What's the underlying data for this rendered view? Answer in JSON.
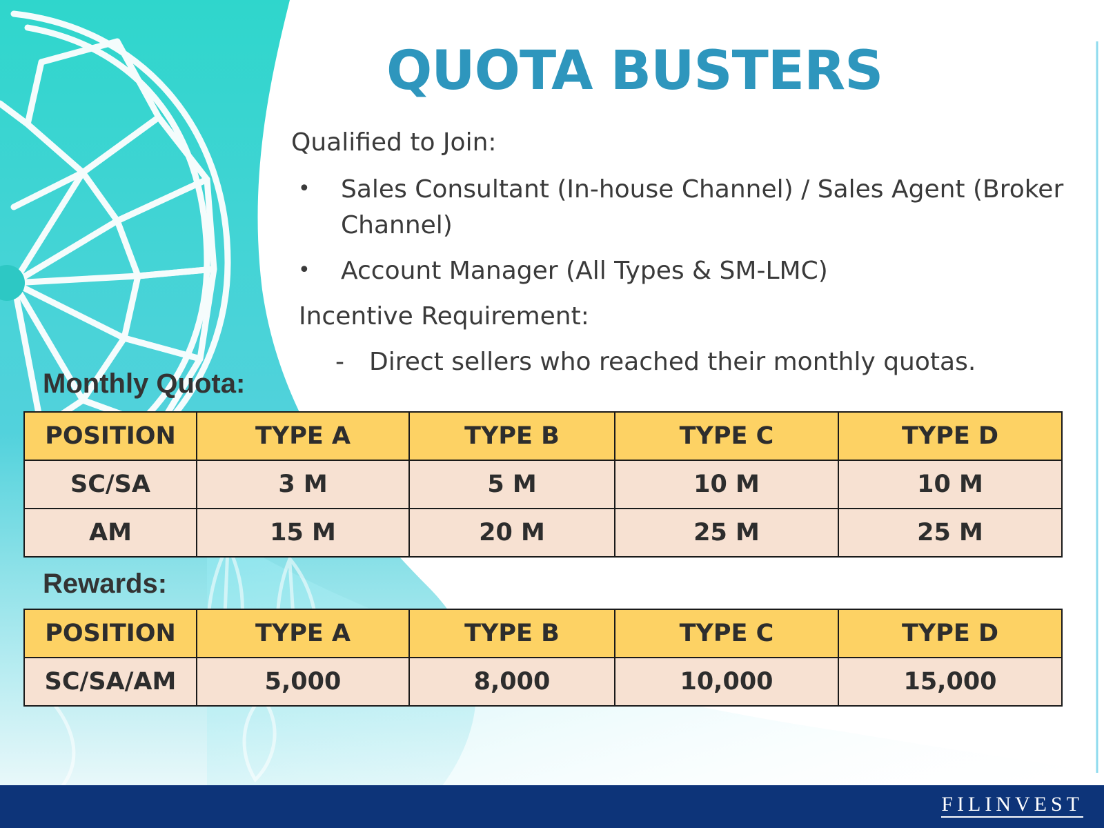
{
  "title": "QUOTA BUSTERS",
  "qualified": {
    "heading": "Qualified to Join:",
    "items": [
      "Sales Consultant  (In-house Channel) / Sales Agent (Broker",
      "Channel)",
      "Account Manager (All Types & SM-LMC)"
    ],
    "bullet": "•"
  },
  "incentive": {
    "heading": "Incentive Requirement:",
    "dash": "-",
    "item": "Direct sellers who reached their monthly quotas."
  },
  "monthly_quota": {
    "label": "Monthly Quota:",
    "headers": [
      "POSITION",
      "TYPE A",
      "TYPE B",
      "TYPE C",
      "TYPE D"
    ],
    "rows": [
      [
        "SC/SA",
        "3 M",
        "5 M",
        "10 M",
        "10 M"
      ],
      [
        "AM",
        "15 M",
        "20 M",
        "25 M",
        "25 M"
      ]
    ]
  },
  "rewards": {
    "label": "Rewards:",
    "headers": [
      "POSITION",
      "TYPE A",
      "TYPE B",
      "TYPE C",
      "TYPE D"
    ],
    "rows": [
      [
        "SC/SA/AM",
        "5,000",
        "8,000",
        "10,000",
        "15,000"
      ]
    ]
  },
  "footer": {
    "logo_text": "FILINVEST"
  },
  "colors": {
    "title": "#2e96bd",
    "header_fill": "#fdd264",
    "cell_fill": "#f7e1d2",
    "footer_bar": "#0d3479",
    "background_turquoise": "#35d8cf"
  }
}
